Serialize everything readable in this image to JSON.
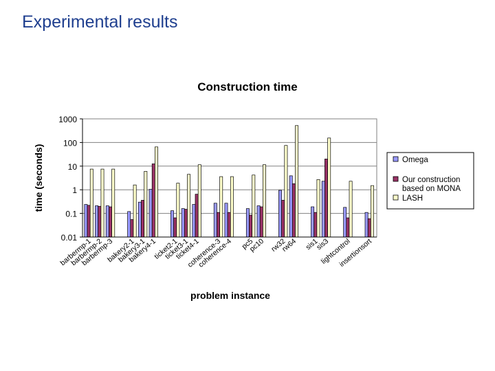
{
  "slide": {
    "title": "Experimental results"
  },
  "chart_data": {
    "type": "bar",
    "title": "Construction time",
    "xlabel": "problem instance",
    "ylabel": "time (seconds)",
    "y_scale": "log",
    "ylim": [
      0.01,
      1000
    ],
    "y_ticks": [
      "0.01",
      "0.1",
      "1",
      "10",
      "100",
      "1000"
    ],
    "grid": "horizontal",
    "legend_position": "right",
    "categories": [
      "barbermp-1",
      "barbermp-2",
      "barbermp-3",
      "bakery2-1",
      "bakery3-1",
      "bakery4-1",
      "ticket2-1",
      "ticket3-1",
      "ticket4-1",
      "coherence-3",
      "coherence-4",
      "pc5",
      "pc10",
      "rw32",
      "rw64",
      "sis1",
      "sis3",
      "lightcontrol",
      "insertionsort"
    ],
    "series": [
      {
        "name": "Omega",
        "color": "#9999ff",
        "values": [
          0.24,
          0.21,
          0.21,
          0.12,
          0.3,
          1.05,
          0.13,
          0.16,
          0.24,
          0.27,
          0.27,
          0.16,
          0.21,
          0.95,
          3.9,
          0.19,
          2.3,
          0.18,
          0.11
        ]
      },
      {
        "name": "Our construction based on MONA",
        "color": "#993366",
        "values": [
          0.22,
          0.2,
          0.19,
          0.055,
          0.36,
          12.5,
          0.065,
          0.15,
          0.65,
          0.11,
          0.11,
          0.085,
          0.19,
          0.36,
          1.8,
          0.11,
          20,
          0.065,
          0.06
        ]
      },
      {
        "name": "LASH",
        "color": "#ffffcc",
        "values": [
          7.5,
          7.5,
          7.5,
          1.6,
          6.0,
          65,
          1.9,
          4.5,
          11.5,
          3.6,
          3.6,
          4.2,
          11.5,
          75,
          520,
          2.7,
          155,
          2.3,
          1.5
        ]
      }
    ]
  }
}
